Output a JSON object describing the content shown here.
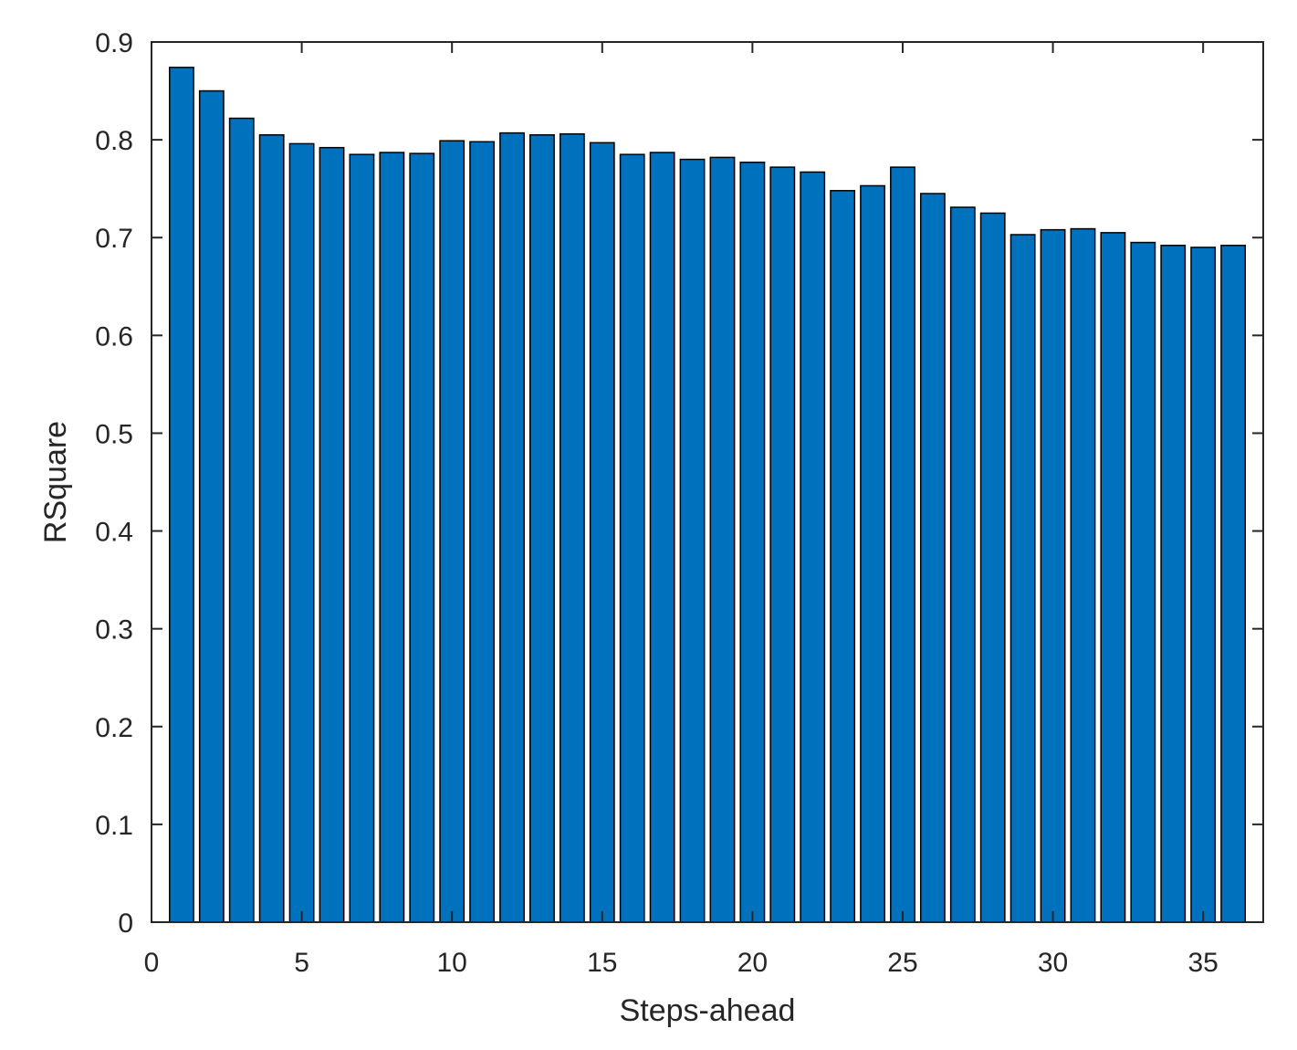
{
  "chart_data": {
    "type": "bar",
    "title": "",
    "xlabel": "Steps-ahead",
    "ylabel": "RSquare",
    "xlim": [
      0,
      37
    ],
    "ylim": [
      0,
      0.9
    ],
    "xticks": [
      0,
      5,
      10,
      15,
      20,
      25,
      30,
      35
    ],
    "yticks": [
      0,
      0.1,
      0.2,
      0.3,
      0.4,
      0.5,
      0.6,
      0.7,
      0.8,
      0.9
    ],
    "xtick_labels": [
      "0",
      "5",
      "10",
      "15",
      "20",
      "25",
      "30",
      "35"
    ],
    "ytick_labels": [
      "0",
      "0.1",
      "0.2",
      "0.3",
      "0.4",
      "0.5",
      "0.6",
      "0.7",
      "0.8",
      "0.9"
    ],
    "grid": false,
    "bar_color": "#0072BD",
    "edge_color": "#000000",
    "x": [
      1,
      2,
      3,
      4,
      5,
      6,
      7,
      8,
      9,
      10,
      11,
      12,
      13,
      14,
      15,
      16,
      17,
      18,
      19,
      20,
      21,
      22,
      23,
      24,
      25,
      26,
      27,
      28,
      29,
      30,
      31,
      32,
      33,
      34,
      35,
      36
    ],
    "values": [
      0.874,
      0.85,
      0.822,
      0.805,
      0.796,
      0.792,
      0.785,
      0.787,
      0.786,
      0.799,
      0.798,
      0.807,
      0.805,
      0.806,
      0.797,
      0.785,
      0.787,
      0.78,
      0.782,
      0.777,
      0.772,
      0.767,
      0.748,
      0.753,
      0.772,
      0.745,
      0.731,
      0.725,
      0.703,
      0.708,
      0.709,
      0.705,
      0.695,
      0.692,
      0.69,
      0.692
    ]
  }
}
